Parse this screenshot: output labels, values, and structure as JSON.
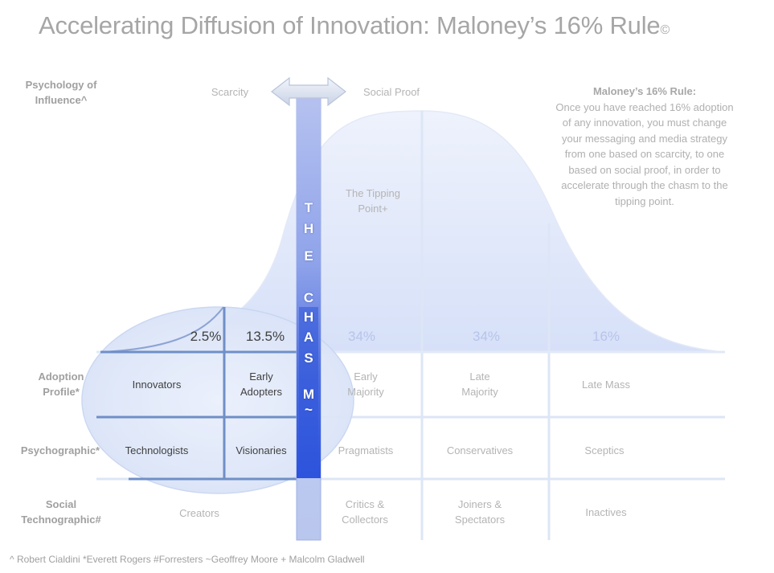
{
  "title": "Accelerating Diffusion of Innovation: Maloney’s 16% Rule",
  "title_mark": "©",
  "row_labels": {
    "psychology": "Psychology of Influence^",
    "adoption": "Adoption Profile*",
    "psychographic": "Psychographic*",
    "social": "Social Technographic#"
  },
  "influence": {
    "scarcity": "Scarcity",
    "social_proof": "Social Proof"
  },
  "tipping_point": "The Tipping Point+",
  "rule": {
    "heading": "Maloney’s 16% Rule:",
    "text": "Once you have reached 16% adoption of any innovation, you must change your messaging and media strategy from one based on scarcity, to one based on social proof, in order to accelerate through the chasm to the tipping point."
  },
  "chasm_letters": [
    "T",
    "H",
    "E",
    "",
    "C",
    "H",
    "A",
    "S",
    "M",
    "~"
  ],
  "percentages": [
    "2.5%",
    "13.5%",
    "34%",
    "34%",
    "16%"
  ],
  "adoption": [
    "Innovators",
    "Early Adopters",
    "Early Majority",
    "Late Majority",
    "Late Mass"
  ],
  "psychographic": [
    "Technologists",
    "Visionaries",
    "Pragmatists",
    "Conservatives",
    "Sceptics"
  ],
  "social": [
    "Creators",
    "Critics & Collectors",
    "Joiners & Spectators",
    "Inactives"
  ],
  "footnote": "^ Robert Cialdini *Everett Rogers  #Forresters ~Geoffrey Moore + Malcolm Gladwell",
  "colors": {
    "curve_fill": "#dfe7fa",
    "grid_line": "#dde6f6",
    "highlight_line": "#6f8fc6",
    "chasm_top": "#a9b8ee",
    "chasm_bottom": "#2f56d8"
  }
}
